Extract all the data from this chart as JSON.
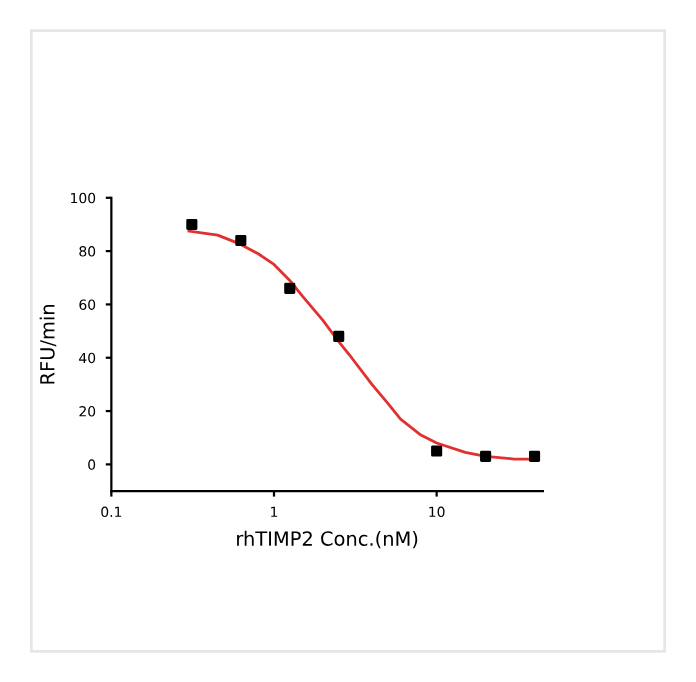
{
  "chart_data": {
    "type": "scatter",
    "xlabel": "rhTIMP2 Conc.(nM)",
    "ylabel": "RFU/min",
    "log": "x",
    "xlim": [
      0.1,
      45
    ],
    "xticks": [
      0.1,
      1,
      10
    ],
    "ylim": [
      -10,
      100
    ],
    "yticks": [
      0,
      20,
      40,
      60,
      80,
      100
    ],
    "grid": false,
    "legend": false,
    "series": [
      {
        "color": "#000000",
        "marker": "square",
        "x": [
          0.3125,
          0.625,
          1.25,
          2.5,
          10,
          20,
          40
        ],
        "values": [
          90,
          84,
          66,
          48,
          5,
          3,
          3
        ]
      },
      {
        "type": "line",
        "color": "#e03030",
        "marker": "none",
        "line_style": "solid",
        "x": [
          0.3,
          0.45,
          0.6,
          0.8,
          1,
          1.25,
          1.5,
          2,
          2.5,
          3,
          4,
          5,
          6,
          8,
          10,
          15,
          20,
          30,
          40
        ],
        "values": [
          87.5,
          86,
          83,
          79,
          75,
          69,
          63,
          54,
          46,
          40,
          30,
          23,
          17,
          11,
          8,
          4.5,
          3,
          2,
          2
        ]
      }
    ]
  }
}
